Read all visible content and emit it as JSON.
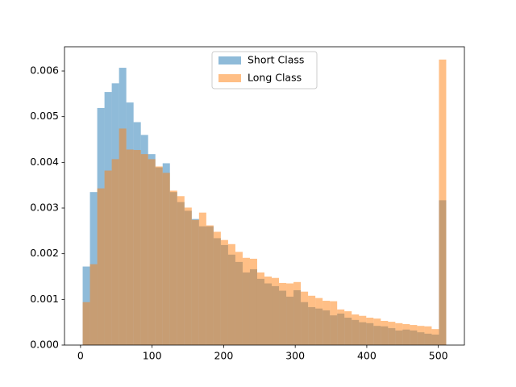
{
  "chart_data": {
    "type": "histogram",
    "bins": [
      3,
      13.16,
      23.32,
      33.48,
      43.64,
      53.8,
      63.96,
      74.12,
      84.28,
      94.44,
      104.6,
      114.76,
      124.92,
      135.08,
      145.24,
      155.4,
      165.56,
      175.72,
      185.88,
      196.04,
      206.2,
      216.36,
      226.52,
      236.68,
      246.84,
      257,
      267.16,
      277.32,
      287.48,
      297.64,
      307.8,
      317.96,
      328.12,
      338.28,
      348.44,
      358.6,
      368.76,
      378.92,
      389.08,
      399.24,
      409.4,
      419.56,
      429.72,
      439.88,
      450.04,
      460.2,
      470.36,
      480.52,
      490.68,
      500.84,
      511
    ],
    "series": [
      {
        "name": "Short Class",
        "color": "#1f77b4",
        "opacity": 0.5,
        "values": [
          0.00172,
          0.00335,
          0.00519,
          0.00554,
          0.00573,
          0.00607,
          0.00531,
          0.00488,
          0.0046,
          0.00418,
          0.00389,
          0.00398,
          0.00335,
          0.00313,
          0.00294,
          0.00276,
          0.0026,
          0.0026,
          0.00234,
          0.00219,
          0.00198,
          0.00182,
          0.00159,
          0.00166,
          0.00145,
          0.00135,
          0.00129,
          0.00119,
          0.00106,
          0.0012,
          0.00094,
          0.00083,
          0.0008,
          0.00076,
          0.00065,
          0.00069,
          0.0006,
          0.00055,
          0.0005,
          0.00048,
          0.00042,
          0.00041,
          0.00037,
          0.00032,
          0.00034,
          0.00032,
          0.00028,
          0.00025,
          0.00023,
          0.00317
        ]
      },
      {
        "name": "Long Class",
        "color": "#ff7f0e",
        "opacity": 0.5,
        "values": [
          0.00094,
          0.00177,
          0.00343,
          0.00382,
          0.00407,
          0.00474,
          0.00428,
          0.00427,
          0.00418,
          0.00407,
          0.00391,
          0.00377,
          0.00338,
          0.00326,
          0.00301,
          0.00274,
          0.0029,
          0.00262,
          0.00248,
          0.0023,
          0.00221,
          0.00204,
          0.00191,
          0.00189,
          0.00159,
          0.0015,
          0.00147,
          0.00136,
          0.00135,
          0.00138,
          0.00117,
          0.00108,
          0.00103,
          0.00097,
          0.00096,
          0.00078,
          0.00074,
          0.00067,
          0.00064,
          0.0006,
          0.00058,
          0.00053,
          0.00051,
          0.00048,
          0.00046,
          0.00044,
          0.00042,
          0.00041,
          0.00035,
          0.00625
        ]
      }
    ],
    "xlim": [
      -22.4,
      536.4
    ],
    "ylim": [
      0,
      0.00653
    ],
    "xticks": [
      0,
      100,
      200,
      300,
      400,
      500
    ],
    "yticks": [
      {
        "value": 0,
        "label": "0.000"
      },
      {
        "value": 0.001,
        "label": "0.001"
      },
      {
        "value": 0.002,
        "label": "0.002"
      },
      {
        "value": 0.003,
        "label": "0.003"
      },
      {
        "value": 0.004,
        "label": "0.004"
      },
      {
        "value": 0.005,
        "label": "0.005"
      },
      {
        "value": 0.006,
        "label": "0.006"
      }
    ],
    "legend": "upper center"
  }
}
